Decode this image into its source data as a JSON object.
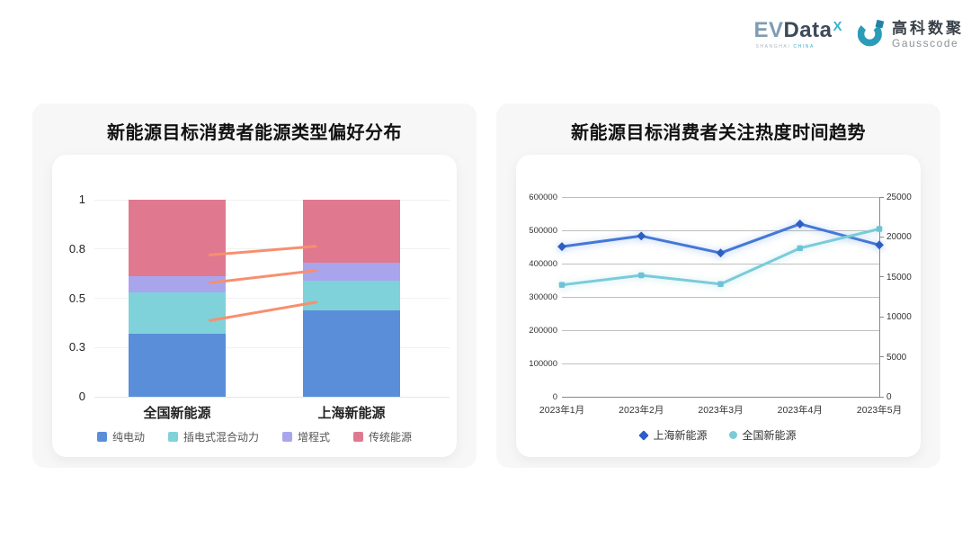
{
  "logo": {
    "evdata": {
      "ev": "EV",
      "data": "Data",
      "sup": "X",
      "sub1": "SHANGHAI",
      "sub2": "CHINA"
    },
    "gausscode": {
      "cn": "高科数聚",
      "en": "Gausscode",
      "icon_color": "#2a9cb8",
      "icon_square_color": "#1f84a6"
    }
  },
  "chart_data": [
    {
      "type": "bar",
      "stacked": true,
      "title": "新能源目标消费者能源类型偏好分布",
      "categories": [
        "全国新能源",
        "上海新能源"
      ],
      "series": [
        {
          "name": "纯电动",
          "color": "#5a8ed9",
          "values": [
            0.32,
            0.44
          ]
        },
        {
          "name": "插电式混合动力",
          "color": "#7fd2d9",
          "values": [
            0.21,
            0.15
          ]
        },
        {
          "name": "增程式",
          "color": "#a9a5ed",
          "values": [
            0.08,
            0.09
          ]
        },
        {
          "name": "传统能源",
          "color": "#e0798f",
          "values": [
            0.39,
            0.32
          ]
        }
      ],
      "y_axis": {
        "tick_labels": [
          "0",
          "0.3",
          "0.5",
          "0.8",
          "1"
        ],
        "tick_values": [
          0,
          0.25,
          0.5,
          0.75,
          1
        ],
        "ylim": [
          0,
          1
        ]
      },
      "connectors": {
        "color": "#f78f6f",
        "segments": [
          {
            "from": 0.72,
            "to": 0.765
          },
          {
            "from": 0.578,
            "to": 0.642
          },
          {
            "from": 0.385,
            "to": 0.48
          }
        ]
      },
      "grid": true,
      "legend_position": "bottom"
    },
    {
      "type": "line",
      "title": "新能源目标消费者关注热度时间趋势",
      "x": [
        "2023年1月",
        "2023年2月",
        "2023年3月",
        "2023年4月",
        "2023年5月"
      ],
      "series": [
        {
          "name": "上海新能源",
          "color": "#4478d6",
          "marker_color": "#2d5fc2",
          "marker": "diamond",
          "axis": "left",
          "values": [
            451000,
            483000,
            432000,
            519000,
            456000
          ]
        },
        {
          "name": "全国新能源",
          "color": "#7bcbd9",
          "marker_color": "#6ec2d3",
          "marker": "square",
          "axis": "right",
          "values": [
            14000,
            15200,
            14100,
            18600,
            21000
          ]
        }
      ],
      "left_axis": {
        "ticks": [
          0,
          100000,
          200000,
          300000,
          400000,
          500000,
          600000
        ],
        "max": 600000
      },
      "right_axis": {
        "ticks": [
          0,
          5000,
          10000,
          15000,
          20000,
          25000
        ],
        "max": 25000
      },
      "grid": true,
      "legend_position": "bottom"
    }
  ]
}
